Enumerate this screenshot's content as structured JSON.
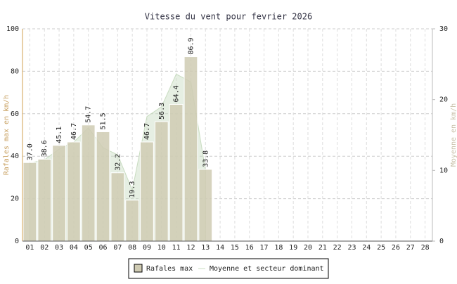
{
  "chart_data": {
    "type": "bar",
    "title": "Vitesse du vent pour fevrier 2026",
    "y_label": "Rafales max en km/h",
    "y2_label": "Moyenne en km/h",
    "categories": [
      "01",
      "02",
      "03",
      "04",
      "05",
      "06",
      "07",
      "08",
      "09",
      "10",
      "11",
      "12",
      "13",
      "14",
      "15",
      "16",
      "17",
      "18",
      "19",
      "20",
      "21",
      "22",
      "23",
      "24",
      "25",
      "26",
      "27",
      "28"
    ],
    "series": [
      {
        "name": "Rafales max",
        "color": "#cfcbb3",
        "values": [
          37.0,
          38.6,
          45.1,
          46.7,
          54.7,
          51.5,
          32.2,
          19.3,
          46.7,
          56.3,
          64.4,
          86.9,
          33.8,
          null,
          null,
          null,
          null,
          null,
          null,
          null,
          null,
          null,
          null,
          null,
          null,
          null,
          null,
          null
        ],
        "value_labels": [
          "37.0",
          "38.6",
          "45.1",
          "46.7",
          "54.7",
          "51.5",
          "32.2",
          "19.3",
          "46.7",
          "56.3",
          "64.4",
          "86.9",
          "33.8",
          null,
          null,
          null,
          null,
          null,
          null,
          null,
          null,
          null,
          null,
          null,
          null,
          null,
          null,
          null
        ]
      },
      {
        "name": "Moyenne et secteur dominant",
        "color": "#c8dcc0",
        "axis": "y2",
        "values": [
          11,
          11.5,
          13,
          14,
          16,
          13.2,
          12.2,
          7.2,
          17.6,
          19,
          23.6,
          22.5,
          10,
          null,
          null,
          null,
          null,
          null,
          null,
          null,
          null,
          null,
          null,
          null,
          null,
          null,
          null,
          null
        ]
      }
    ],
    "ylim": [
      0,
      100
    ],
    "yticks": [
      0,
      20,
      40,
      60,
      80,
      100
    ],
    "y2lim": [
      0,
      30
    ],
    "y2ticks": [
      0,
      10,
      20,
      30
    ],
    "grid": true,
    "legend": "bottom"
  }
}
